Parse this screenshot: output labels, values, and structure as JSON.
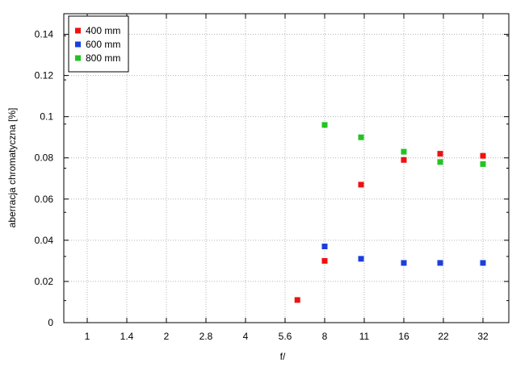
{
  "chart_data": {
    "type": "scatter",
    "title": "",
    "xlabel": "f/",
    "ylabel": "aberracja chromatyczna [%]",
    "x_categories": [
      "1",
      "1.4",
      "2",
      "2.8",
      "4",
      "5.6",
      "8",
      "11",
      "16",
      "22",
      "32"
    ],
    "x_scale": "log2-aperture",
    "ylim": [
      0,
      0.15
    ],
    "y_ticks": [
      "0",
      "0.02",
      "0.04",
      "0.06",
      "0.08",
      "0.1",
      "0.12",
      "0.14"
    ],
    "grid": true,
    "legend_position": "top-left",
    "series": [
      {
        "name": "400 mm",
        "color": "#ee1111",
        "points": [
          {
            "x": 6.3,
            "y": 0.011
          },
          {
            "x": 8,
            "y": 0.03
          },
          {
            "x": 11,
            "y": 0.067
          },
          {
            "x": 16,
            "y": 0.079
          },
          {
            "x": 22,
            "y": 0.082
          },
          {
            "x": 32,
            "y": 0.081
          }
        ]
      },
      {
        "name": "600 mm",
        "color": "#1a3fdd",
        "points": [
          {
            "x": 8,
            "y": 0.037
          },
          {
            "x": 11,
            "y": 0.031
          },
          {
            "x": 16,
            "y": 0.029
          },
          {
            "x": 22,
            "y": 0.029
          },
          {
            "x": 32,
            "y": 0.029
          }
        ]
      },
      {
        "name": "800 mm",
        "color": "#22c422",
        "points": [
          {
            "x": 8,
            "y": 0.096
          },
          {
            "x": 11,
            "y": 0.09
          },
          {
            "x": 16,
            "y": 0.083
          },
          {
            "x": 22,
            "y": 0.078
          },
          {
            "x": 32,
            "y": 0.077
          }
        ]
      }
    ]
  }
}
